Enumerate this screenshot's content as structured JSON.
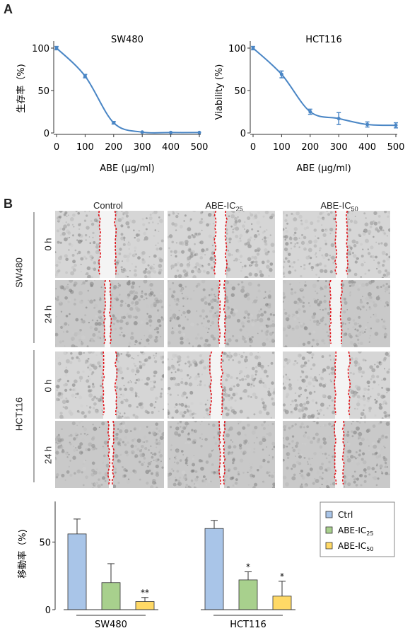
{
  "panel_a": {
    "label": "A",
    "left_title": "SW480",
    "right_title": "HCT116",
    "left_ylabel": "生存率（%)",
    "right_ylabel": "Viability (%)",
    "xlabel": "ABE (μg/ml)"
  },
  "panel_b": {
    "label": "B",
    "columns": [
      "Control",
      "ABE-IC",
      "ABE-IC"
    ],
    "column_subs": [
      "",
      "25",
      "50"
    ],
    "cell_lines": [
      "SW480",
      "HCT116"
    ],
    "times": [
      "0 h",
      "24 h"
    ]
  },
  "panel_c": {
    "ylabel": "移動率（%)",
    "legend": [
      {
        "label": "Ctrl",
        "sub": "",
        "color": "#a9c5e8"
      },
      {
        "label": "ABE-IC",
        "sub": "25",
        "color": "#a8d08d"
      },
      {
        "label": "ABE-IC",
        "sub": "50",
        "color": "#ffd966"
      }
    ],
    "group_labels": [
      "SW480",
      "HCT116"
    ]
  },
  "chart_data": [
    {
      "type": "line",
      "title": "SW480",
      "xlabel": "ABE (μg/ml)",
      "ylabel": "生存率（%)",
      "x": [
        0,
        100,
        200,
        300,
        400,
        500
      ],
      "series": [
        {
          "values": [
            100,
            67,
            12,
            1,
            0.5,
            0.5
          ],
          "errors": [
            2,
            2,
            1.5,
            0.5,
            0.5,
            0.5
          ]
        }
      ],
      "xlim": [
        0,
        500
      ],
      "ylim": [
        0,
        100
      ],
      "xticks": [
        0,
        100,
        200,
        300,
        400,
        500
      ],
      "yticks": [
        0,
        50,
        100
      ],
      "color": "#4a86c5"
    },
    {
      "type": "line",
      "title": "HCT116",
      "xlabel": "ABE (μg/ml)",
      "ylabel": "Viability (%)",
      "x": [
        0,
        100,
        200,
        300,
        400,
        500
      ],
      "series": [
        {
          "values": [
            100,
            69,
            25,
            17,
            10,
            9
          ],
          "errors": [
            2,
            4,
            3,
            7,
            3,
            3
          ]
        }
      ],
      "xlim": [
        0,
        500
      ],
      "ylim": [
        0,
        100
      ],
      "xticks": [
        0,
        100,
        200,
        300,
        400,
        500
      ],
      "yticks": [
        0,
        50,
        100
      ],
      "color": "#4a86c5"
    },
    {
      "type": "bar",
      "ylabel": "移動率（%)",
      "categories": [
        "SW480",
        "HCT116"
      ],
      "series": [
        {
          "name": "Ctrl",
          "values": [
            56,
            60
          ],
          "errors": [
            11,
            6
          ],
          "sig": [
            "",
            ""
          ]
        },
        {
          "name": "ABE-IC25",
          "values": [
            20,
            22
          ],
          "errors": [
            14,
            6
          ],
          "sig": [
            "",
            "*"
          ]
        },
        {
          "name": "ABE-IC50",
          "values": [
            6,
            10
          ],
          "errors": [
            3,
            11
          ],
          "sig": [
            "**",
            "*"
          ]
        }
      ],
      "ylim": [
        0,
        80
      ],
      "yticks": [
        0,
        50
      ],
      "colors": [
        "#a9c5e8",
        "#a8d08d",
        "#ffd966"
      ]
    }
  ]
}
